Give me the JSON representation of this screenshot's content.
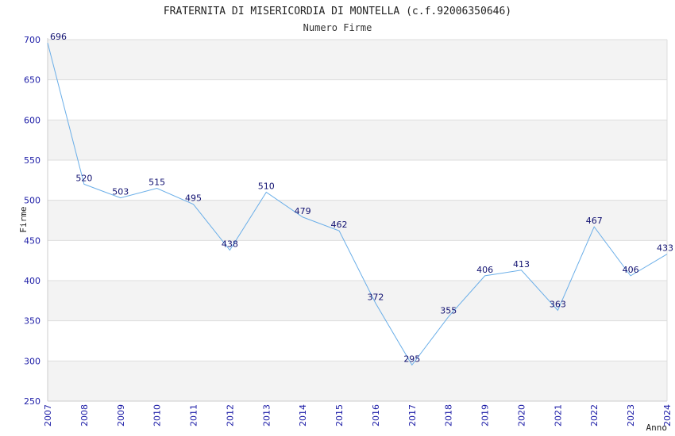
{
  "chart_data": {
    "type": "line",
    "title": "FRATERNITA DI MISERICORDIA DI MONTELLA (c.f.92006350646)",
    "subtitle": "Numero Firme",
    "xlabel": "Anno",
    "ylabel": "Firme",
    "ylim": [
      250,
      700
    ],
    "yticks": [
      250,
      300,
      350,
      400,
      450,
      500,
      550,
      600,
      650,
      700
    ],
    "x": [
      "2007",
      "2008",
      "2009",
      "2010",
      "2011",
      "2012",
      "2013",
      "2014",
      "2015",
      "2016",
      "2017",
      "2018",
      "2019",
      "2020",
      "2021",
      "2022",
      "2023",
      "2024"
    ],
    "series": [
      {
        "values": [
          696,
          520,
          503,
          515,
          495,
          438,
          510,
          479,
          462,
          372,
          295,
          355,
          406,
          413,
          363,
          467,
          406,
          433
        ]
      }
    ],
    "grid": true,
    "colors": {
      "line": "#6aaee8",
      "band": "#f3f3f3",
      "grid": "#dddddd",
      "tick": "#1a1aa6"
    }
  }
}
